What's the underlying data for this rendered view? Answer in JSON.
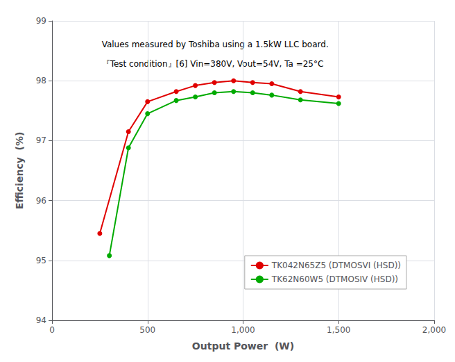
{
  "chart_data": {
    "type": "line",
    "xlabel": "Output Power  (W)",
    "ylabel": "Efficiency  (%)",
    "annotations": [
      "Values measured by Toshiba using a 1.5kW LLC board.",
      "『Test condition』[6] Vin=380V, Vout=54V, Ta =25°C"
    ],
    "series": [
      {
        "name": "TK042N65Z5 (DTMOSVI (HSD))",
        "color": "#e00000",
        "x": [
          250,
          400,
          500,
          650,
          750,
          850,
          950,
          1050,
          1150,
          1300,
          1500
        ],
        "values": [
          95.45,
          97.15,
          97.65,
          97.82,
          97.92,
          97.97,
          98.0,
          97.97,
          97.95,
          97.82,
          97.73
        ]
      },
      {
        "name": "TK62N60W5 (DTMOSIV (HSD))",
        "color": "#00aa00",
        "x": [
          300,
          400,
          500,
          650,
          750,
          850,
          950,
          1050,
          1150,
          1300,
          1500
        ],
        "values": [
          95.08,
          96.88,
          97.45,
          97.67,
          97.73,
          97.8,
          97.82,
          97.8,
          97.76,
          97.68,
          97.62
        ]
      }
    ],
    "xlim": [
      0,
      2000
    ],
    "ylim": [
      94,
      99
    ],
    "xticks": [
      0,
      500,
      1000,
      1500,
      2000
    ],
    "yticks": [
      94,
      95,
      96,
      97,
      98,
      99
    ],
    "grid": true,
    "legend": "lower right",
    "marker": "circle",
    "line_style": "solid"
  }
}
